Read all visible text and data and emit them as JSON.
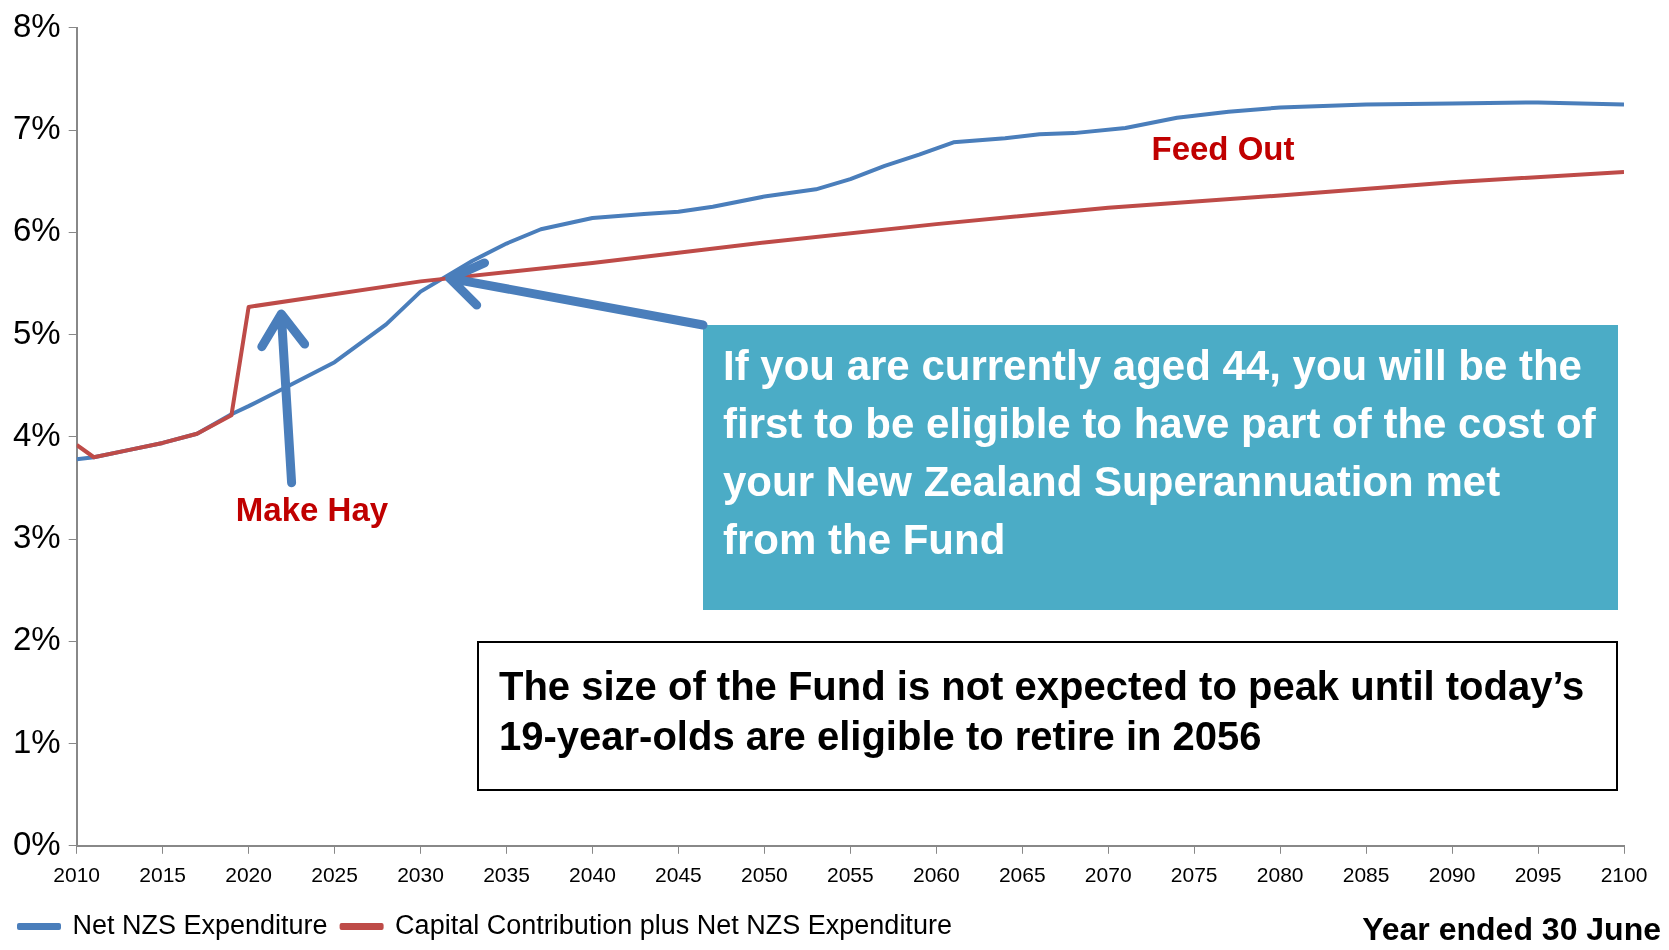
{
  "chart_data": {
    "type": "line",
    "xlabel": "Year ended 30 June",
    "xlim": [
      2010,
      2100
    ],
    "xticks": [
      2010,
      2015,
      2020,
      2025,
      2030,
      2035,
      2040,
      2045,
      2050,
      2055,
      2060,
      2065,
      2070,
      2075,
      2080,
      2085,
      2090,
      2095,
      2100
    ],
    "ylim": [
      0,
      8
    ],
    "yticks": [
      {
        "value": 0,
        "label": "0%"
      },
      {
        "value": 1,
        "label": "1%"
      },
      {
        "value": 2,
        "label": "2%"
      },
      {
        "value": 3,
        "label": "3%"
      },
      {
        "value": 4,
        "label": "4%"
      },
      {
        "value": 5,
        "label": "5%"
      },
      {
        "value": 6,
        "label": "6%"
      },
      {
        "value": 7,
        "label": "7%"
      },
      {
        "value": 8,
        "label": "8%"
      }
    ],
    "grid": false,
    "legend": "bottom left",
    "marker": "none",
    "line_style": "solid",
    "series": [
      {
        "name": "Net NZS Expenditure",
        "color": "#4a7ebb",
        "x": [
          2010,
          2011,
          2013,
          2015,
          2017,
          2019,
          2020,
          2022,
          2025,
          2028,
          2030,
          2033,
          2035,
          2037,
          2040,
          2043,
          2045,
          2047,
          2050,
          2053,
          2055,
          2057,
          2059,
          2061,
          2064,
          2066,
          2068,
          2071,
          2074,
          2077,
          2080,
          2085,
          2090,
          2095,
          2100
        ],
        "values": [
          3.78,
          3.8,
          3.87,
          3.94,
          4.03,
          4.22,
          4.3,
          4.47,
          4.73,
          5.1,
          5.42,
          5.72,
          5.89,
          6.03,
          6.14,
          6.18,
          6.2,
          6.25,
          6.35,
          6.42,
          6.52,
          6.65,
          6.76,
          6.88,
          6.92,
          6.96,
          6.97,
          7.02,
          7.12,
          7.18,
          7.22,
          7.25,
          7.26,
          7.27,
          7.25
        ]
      },
      {
        "name": "Capital Contribution plus Net NZS Expenditure",
        "color": "#be4b48",
        "x": [
          2010,
          2011,
          2013,
          2015,
          2017,
          2019,
          2020,
          2030,
          2040,
          2050,
          2060,
          2070,
          2080,
          2090,
          2100
        ],
        "values": [
          3.92,
          3.8,
          3.87,
          3.94,
          4.03,
          4.21,
          5.27,
          5.52,
          5.7,
          5.9,
          6.08,
          6.24,
          6.36,
          6.49,
          6.59
        ]
      }
    ],
    "annotations": [
      "Make Hay",
      "Feed Out",
      "If you are currently aged 44, you will be the first to be eligible to have part of the cost of your New Zealand Superannuation met from the Fund",
      "The size of the Fund is not expected to peak until today’s 19-year-olds are eligible to retire in 2056"
    ]
  }
}
